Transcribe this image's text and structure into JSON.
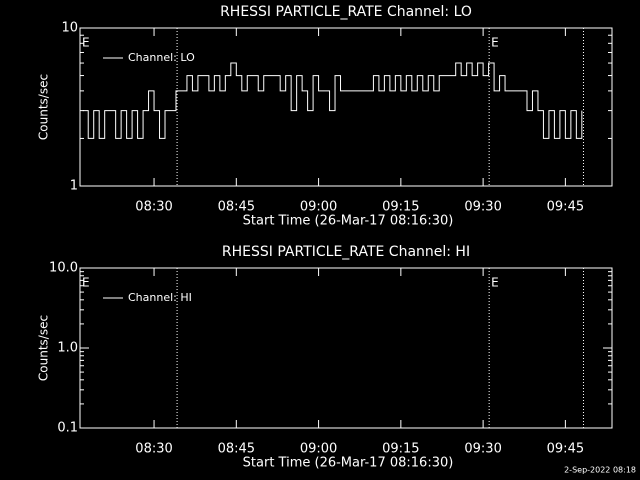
{
  "chart_data": [
    {
      "type": "line",
      "title": "RHESSI PARTICLE_RATE Channel: LO",
      "ylabel": "Counts/sec",
      "xlabel": "Start Time (26-Mar-17 08:16:30)",
      "log_y": true,
      "steps": true,
      "legend": "upper left",
      "color": "#ffffff",
      "xlim": [
        496.5,
        593.5
      ],
      "xticks": [
        {
          "value": 510,
          "label": "08:30"
        },
        {
          "value": 525,
          "label": "08:45"
        },
        {
          "value": 540,
          "label": "09:00"
        },
        {
          "value": 555,
          "label": "09:15"
        },
        {
          "value": 570,
          "label": "09:30"
        },
        {
          "value": 585,
          "label": "09:45"
        }
      ],
      "ylim": [
        1,
        10
      ],
      "yticks": [
        1,
        10
      ],
      "vlines": [
        514.2,
        571.1,
        588.3
      ],
      "annotations": [
        {
          "text": "E",
          "x": 496.5
        },
        {
          "text": "E",
          "x": 571.1
        }
      ],
      "x": [
        497,
        498,
        499,
        500,
        501,
        502,
        503,
        504,
        505,
        506,
        507,
        508,
        509,
        510,
        511,
        512,
        513,
        514,
        515,
        516,
        517,
        518,
        519,
        520,
        521,
        522,
        523,
        524,
        525,
        526,
        527,
        528,
        529,
        530,
        531,
        532,
        533,
        534,
        535,
        536,
        537,
        538,
        539,
        540,
        541,
        542,
        543,
        544,
        545,
        546,
        547,
        548,
        549,
        550,
        551,
        552,
        553,
        554,
        555,
        556,
        557,
        558,
        559,
        560,
        561,
        562,
        563,
        564,
        565,
        566,
        567,
        568,
        569,
        570,
        571,
        572,
        573,
        574,
        575,
        576,
        577,
        578,
        579,
        580,
        581,
        582,
        583,
        584,
        585,
        586,
        587,
        588
      ],
      "series": [
        {
          "name": "Channel: LO",
          "color": "#ffffff",
          "values": [
            3,
            2,
            3,
            2,
            3,
            3,
            2,
            3,
            2,
            3,
            2,
            3,
            4,
            3,
            2,
            3,
            3,
            4,
            4,
            5,
            4,
            5,
            5,
            4,
            5,
            4,
            5,
            6,
            5,
            4,
            5,
            5,
            4,
            5,
            5,
            5,
            4,
            5,
            3,
            5,
            4,
            3,
            5,
            4,
            4,
            3,
            5,
            4,
            4,
            4,
            4,
            4,
            4,
            5,
            4,
            5,
            4,
            5,
            4,
            5,
            4,
            5,
            4,
            5,
            4,
            5,
            5,
            5,
            6,
            5,
            6,
            5,
            6,
            5,
            6,
            4,
            5,
            4,
            4,
            4,
            4,
            3,
            4,
            3,
            2,
            3,
            2,
            3,
            2,
            3,
            2,
            3
          ]
        }
      ]
    },
    {
      "type": "line",
      "title": "RHESSI PARTICLE_RATE Channel: HI",
      "ylabel": "Counts/sec",
      "xlabel": "Start Time (26-Mar-17 08:16:30)",
      "log_y": true,
      "steps": true,
      "legend": "upper left",
      "color": "#ffffff",
      "xlim": [
        496.5,
        593.5
      ],
      "xticks": [
        {
          "value": 510,
          "label": "08:30"
        },
        {
          "value": 525,
          "label": "08:45"
        },
        {
          "value": 540,
          "label": "09:00"
        },
        {
          "value": 555,
          "label": "09:15"
        },
        {
          "value": 570,
          "label": "09:30"
        },
        {
          "value": 585,
          "label": "09:45"
        }
      ],
      "ylim": [
        0.1,
        10
      ],
      "yticks": [
        0.1,
        {
          "value": 1,
          "label": "1.0"
        },
        {
          "value": 10,
          "label": "10.0"
        }
      ],
      "vlines": [
        514.2,
        571.1,
        588.3
      ],
      "annotations": [
        {
          "text": "E",
          "x": 496.5
        },
        {
          "text": "E",
          "x": 571.1
        }
      ],
      "x": [],
      "series": [
        {
          "name": "Channel: HI",
          "color": "#ffffff",
          "values": []
        }
      ]
    }
  ],
  "footer": "2-Sep-2022 08:18"
}
